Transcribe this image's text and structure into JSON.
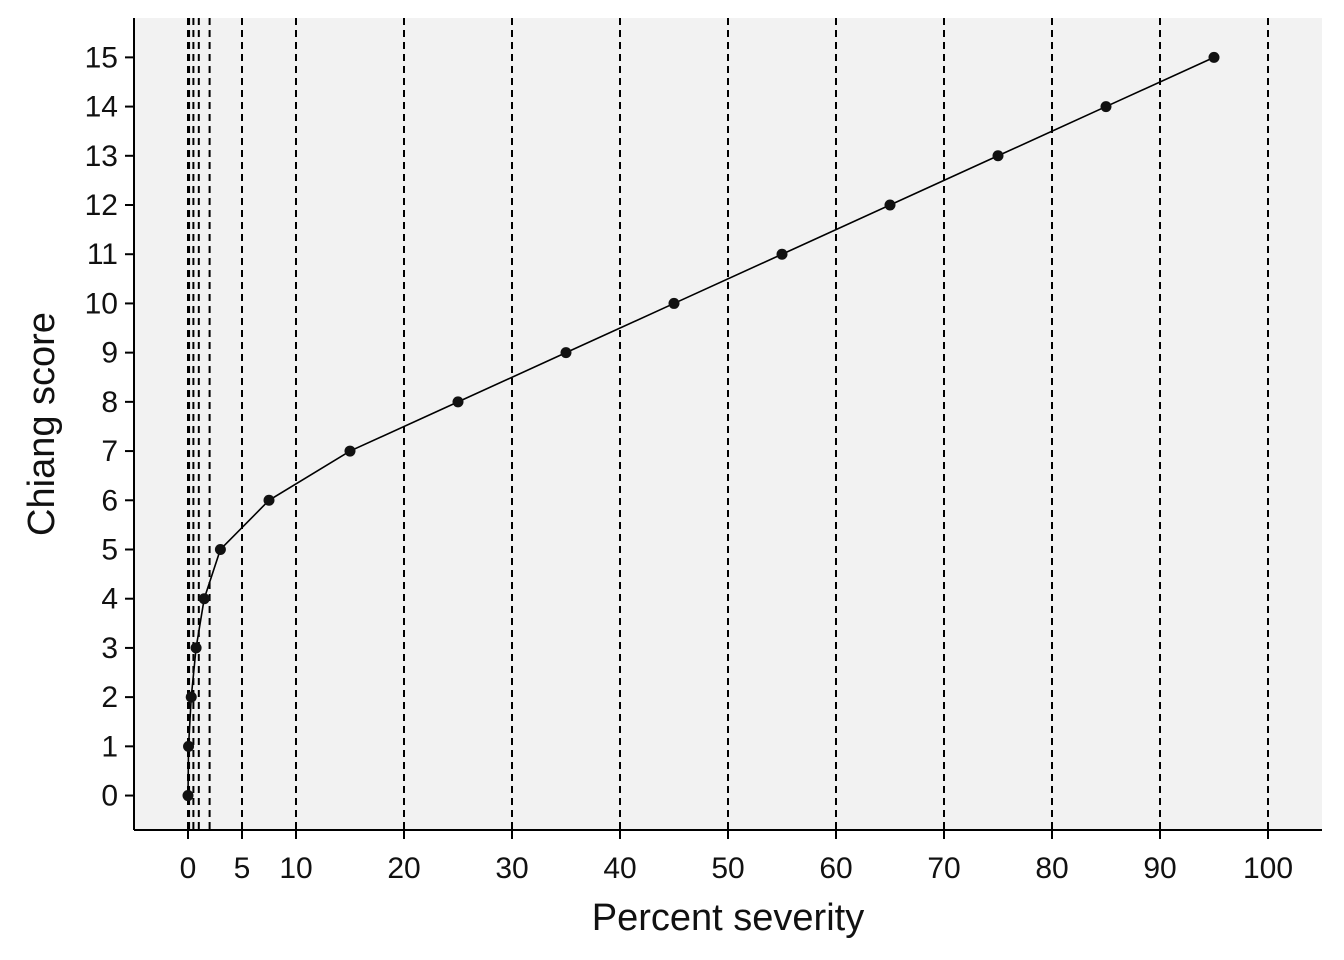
{
  "chart_data": {
    "type": "line",
    "title": "",
    "xlabel": "Percent severity",
    "ylabel": "Chiang score",
    "xlim": [
      -5,
      105
    ],
    "ylim": [
      -0.7,
      15.8
    ],
    "x_ticks": [
      0,
      5,
      10,
      20,
      30,
      40,
      50,
      60,
      70,
      80,
      90,
      100
    ],
    "y_ticks": [
      0,
      1,
      2,
      3,
      4,
      5,
      6,
      7,
      8,
      9,
      10,
      11,
      12,
      13,
      14,
      15
    ],
    "reference_lines_x": [
      0,
      0.1,
      0.5,
      1,
      2,
      5,
      10,
      20,
      30,
      40,
      50,
      60,
      70,
      80,
      90,
      100
    ],
    "grid": false,
    "legend": "none",
    "series": [
      {
        "x": [
          0,
          0.05,
          0.3,
          0.75,
          1.5,
          3.0,
          7.5,
          15,
          25,
          35,
          45,
          55,
          65,
          75,
          85,
          95
        ],
        "y": [
          0,
          1,
          2,
          3,
          4,
          5,
          6,
          7,
          8,
          9,
          10,
          11,
          12,
          13,
          14,
          15
        ]
      }
    ],
    "colors": {
      "panel_background": "#f2f2f2",
      "line": "#000000",
      "points": "#111111",
      "axis": "#000000",
      "reference_lines": "#000000"
    }
  }
}
